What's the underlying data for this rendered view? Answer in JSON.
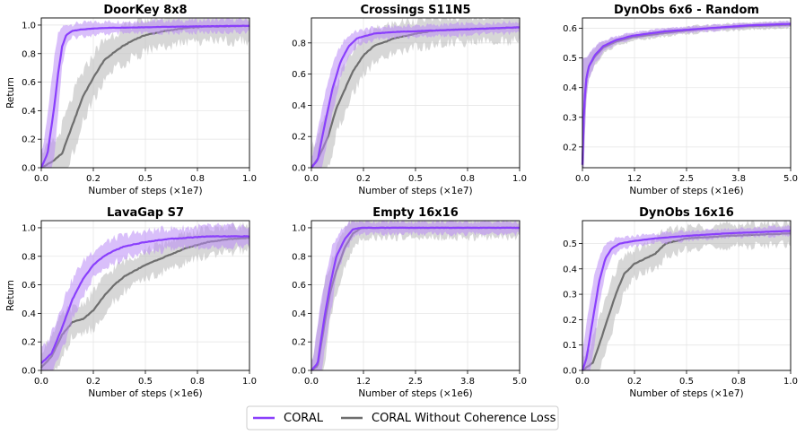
{
  "colors": {
    "coral": "#8a3ffc",
    "coral_band": "#b98af5",
    "baseline": "#6e6e6e",
    "baseline_band": "#bdbdbd"
  },
  "legend": {
    "coral_label": "CORAL",
    "baseline_label": "CORAL Without Coherence Loss"
  },
  "chart_data": [
    {
      "type": "line",
      "title": "DoorKey 8x8",
      "xlabel": "Number of steps (×1e7)",
      "ylabel": "Return",
      "xlim": [
        0,
        1.0
      ],
      "ylim": [
        0,
        1.05
      ],
      "xticks": [
        0,
        0.25,
        0.5,
        0.75,
        1.0
      ],
      "xtick_labels": [
        "0.0",
        "0.2",
        "0.5",
        "0.8",
        "1.0"
      ],
      "yticks": [
        0,
        0.2,
        0.4,
        0.6,
        0.8,
        1.0
      ],
      "ytick_labels": [
        "0.0",
        "0.2",
        "0.4",
        "0.6",
        "0.8",
        "1.0"
      ],
      "series": [
        {
          "name": "CORAL",
          "x": [
            0,
            0.03,
            0.06,
            0.08,
            0.1,
            0.12,
            0.15,
            0.2,
            0.3,
            0.5,
            0.7,
            1.0
          ],
          "values": [
            0,
            0.1,
            0.4,
            0.65,
            0.85,
            0.93,
            0.96,
            0.97,
            0.98,
            0.985,
            0.99,
            0.995
          ],
          "spread": 0.05
        },
        {
          "name": "CORAL Without Coherence Loss",
          "x": [
            0,
            0.05,
            0.1,
            0.15,
            0.2,
            0.25,
            0.3,
            0.35,
            0.4,
            0.45,
            0.5,
            0.6,
            0.7,
            0.8,
            1.0
          ],
          "values": [
            0,
            0.04,
            0.1,
            0.3,
            0.5,
            0.63,
            0.75,
            0.81,
            0.86,
            0.9,
            0.93,
            0.96,
            0.98,
            0.99,
            0.995
          ],
          "spread": 0.12
        }
      ]
    },
    {
      "type": "line",
      "title": "Crossings S11N5",
      "xlabel": "Number of steps (×1e7)",
      "ylabel": "",
      "xlim": [
        0,
        1.0
      ],
      "ylim": [
        0,
        0.96
      ],
      "xticks": [
        0,
        0.25,
        0.5,
        0.75,
        1.0
      ],
      "xtick_labels": [
        "0.0",
        "0.2",
        "0.5",
        "0.8",
        "1.0"
      ],
      "yticks": [
        0,
        0.2,
        0.4,
        0.6,
        0.8
      ],
      "ytick_labels": [
        "0.0",
        "0.2",
        "0.4",
        "0.6",
        "0.8"
      ],
      "series": [
        {
          "name": "CORAL",
          "x": [
            0,
            0.03,
            0.06,
            0.1,
            0.14,
            0.18,
            0.22,
            0.3,
            0.4,
            0.6,
            0.8,
            1.0
          ],
          "values": [
            0,
            0.05,
            0.25,
            0.5,
            0.68,
            0.78,
            0.83,
            0.86,
            0.87,
            0.88,
            0.89,
            0.9
          ],
          "spread": 0.04
        },
        {
          "name": "CORAL Without Coherence Loss",
          "x": [
            0,
            0.04,
            0.08,
            0.12,
            0.16,
            0.2,
            0.25,
            0.3,
            0.4,
            0.5,
            0.6,
            0.8,
            1.0
          ],
          "values": [
            0,
            0.08,
            0.2,
            0.38,
            0.5,
            0.62,
            0.72,
            0.78,
            0.83,
            0.86,
            0.88,
            0.89,
            0.9
          ],
          "spread": 0.1
        }
      ]
    },
    {
      "type": "line",
      "title": "DynObs 6x6 - Random",
      "xlabel": "Number of steps (×1e6)",
      "ylabel": "",
      "xlim": [
        0,
        5.0
      ],
      "ylim": [
        0.13,
        0.635
      ],
      "xticks": [
        0,
        1.25,
        2.5,
        3.75,
        5.0
      ],
      "xtick_labels": [
        "0.0",
        "1.2",
        "2.5",
        "3.8",
        "5.0"
      ],
      "yticks": [
        0.2,
        0.3,
        0.4,
        0.5,
        0.6
      ],
      "ytick_labels": [
        "0.2",
        "0.3",
        "0.4",
        "0.5",
        "0.6"
      ],
      "series": [
        {
          "name": "CORAL",
          "x": [
            0,
            0.03,
            0.08,
            0.15,
            0.3,
            0.5,
            0.8,
            1.2,
            2.0,
            3.0,
            4.0,
            5.0
          ],
          "values": [
            0.14,
            0.3,
            0.42,
            0.47,
            0.51,
            0.54,
            0.56,
            0.575,
            0.59,
            0.6,
            0.61,
            0.615
          ],
          "spread": 0.01
        },
        {
          "name": "CORAL Without Coherence Loss",
          "x": [
            0,
            0.03,
            0.08,
            0.15,
            0.3,
            0.5,
            0.8,
            1.2,
            2.0,
            3.0,
            4.0,
            5.0
          ],
          "values": [
            0.14,
            0.3,
            0.42,
            0.47,
            0.505,
            0.535,
            0.555,
            0.57,
            0.585,
            0.6,
            0.607,
            0.612
          ],
          "spread": 0.012
        }
      ]
    },
    {
      "type": "line",
      "title": "LavaGap S7",
      "xlabel": "Number of steps (×1e6)",
      "ylabel": "Return",
      "xlim": [
        0,
        1.0
      ],
      "ylim": [
        0,
        1.05
      ],
      "xticks": [
        0,
        0.25,
        0.5,
        0.75,
        1.0
      ],
      "xtick_labels": [
        "0.0",
        "0.2",
        "0.5",
        "0.8",
        "1.0"
      ],
      "yticks": [
        0,
        0.2,
        0.4,
        0.6,
        0.8,
        1.0
      ],
      "ytick_labels": [
        "0.0",
        "0.2",
        "0.4",
        "0.6",
        "0.8",
        "1.0"
      ],
      "series": [
        {
          "name": "CORAL",
          "x": [
            0,
            0.05,
            0.1,
            0.15,
            0.2,
            0.25,
            0.3,
            0.35,
            0.4,
            0.5,
            0.6,
            0.7,
            0.8,
            1.0
          ],
          "values": [
            0.05,
            0.12,
            0.3,
            0.5,
            0.64,
            0.74,
            0.8,
            0.84,
            0.87,
            0.9,
            0.92,
            0.93,
            0.94,
            0.94
          ],
          "spread": 0.08
        },
        {
          "name": "CORAL Without Coherence Loss",
          "x": [
            0,
            0.05,
            0.1,
            0.15,
            0.2,
            0.25,
            0.3,
            0.35,
            0.4,
            0.45,
            0.5,
            0.6,
            0.7,
            0.8,
            0.9,
            1.0
          ],
          "values": [
            0.02,
            0.1,
            0.25,
            0.34,
            0.36,
            0.42,
            0.52,
            0.6,
            0.66,
            0.7,
            0.74,
            0.8,
            0.86,
            0.9,
            0.92,
            0.93
          ],
          "spread": 0.1
        }
      ]
    },
    {
      "type": "line",
      "title": "Empty 16x16",
      "xlabel": "Number of steps (×1e6)",
      "ylabel": "",
      "xlim": [
        0,
        5.0
      ],
      "ylim": [
        0,
        1.05
      ],
      "xticks": [
        0,
        1.25,
        2.5,
        3.75,
        5.0
      ],
      "xtick_labels": [
        "0.0",
        "1.2",
        "2.5",
        "3.8",
        "5.0"
      ],
      "yticks": [
        0,
        0.2,
        0.4,
        0.6,
        0.8,
        1.0
      ],
      "ytick_labels": [
        "0.0",
        "0.2",
        "0.4",
        "0.6",
        "0.8",
        "1.0"
      ],
      "series": [
        {
          "name": "CORAL",
          "x": [
            0,
            0.15,
            0.3,
            0.45,
            0.6,
            0.8,
            1.0,
            1.2,
            1.5,
            2.5,
            5.0
          ],
          "values": [
            0,
            0.05,
            0.35,
            0.6,
            0.8,
            0.92,
            0.99,
            1.0,
            1.0,
            1.0,
            1.0
          ],
          "spread": 0.05
        },
        {
          "name": "CORAL Without Coherence Loss",
          "x": [
            0,
            0.15,
            0.3,
            0.45,
            0.6,
            0.8,
            1.0,
            1.2,
            1.5,
            2.5,
            5.0
          ],
          "values": [
            0,
            0.03,
            0.3,
            0.55,
            0.7,
            0.86,
            0.96,
            1.0,
            1.0,
            1.0,
            1.0
          ],
          "spread": 0.08
        }
      ]
    },
    {
      "type": "line",
      "title": "DynObs 16x16",
      "xlabel": "Number of steps (×1e7)",
      "ylabel": "",
      "xlim": [
        0,
        1.0
      ],
      "ylim": [
        0,
        0.59
      ],
      "xticks": [
        0,
        0.25,
        0.5,
        0.75,
        1.0
      ],
      "xtick_labels": [
        "0.0",
        "0.2",
        "0.5",
        "0.8",
        "1.0"
      ],
      "yticks": [
        0,
        0.1,
        0.2,
        0.3,
        0.4,
        0.5
      ],
      "ytick_labels": [
        "0.0",
        "0.1",
        "0.2",
        "0.3",
        "0.4",
        "0.5"
      ],
      "series": [
        {
          "name": "CORAL",
          "x": [
            0,
            0.02,
            0.05,
            0.08,
            0.11,
            0.14,
            0.18,
            0.25,
            0.35,
            0.5,
            0.7,
            1.0
          ],
          "values": [
            0,
            0.05,
            0.2,
            0.35,
            0.44,
            0.48,
            0.5,
            0.51,
            0.52,
            0.53,
            0.54,
            0.55
          ],
          "spread": 0.02
        },
        {
          "name": "CORAL Without Coherence Loss",
          "x": [
            0,
            0.05,
            0.08,
            0.12,
            0.16,
            0.2,
            0.25,
            0.3,
            0.35,
            0.4,
            0.5,
            0.7,
            1.0
          ],
          "values": [
            0,
            0.03,
            0.1,
            0.2,
            0.3,
            0.38,
            0.42,
            0.44,
            0.46,
            0.5,
            0.52,
            0.53,
            0.54
          ],
          "spread": 0.05
        }
      ]
    }
  ]
}
